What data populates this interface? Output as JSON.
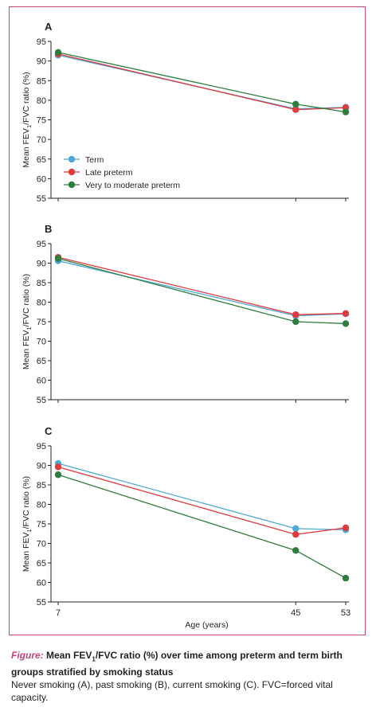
{
  "colors": {
    "term": "#4fa8d6",
    "late_preterm": "#e0393e",
    "very_to_moderate_preterm": "#2e7d3e",
    "frame": "#c4417a"
  },
  "caption": {
    "label": "Figure:",
    "title_pre": "Mean FEV",
    "title_sub": "1",
    "title_post": "/FVC ratio (%) over time among preterm and term birth groups stratified by smoking status",
    "body": "Never smoking (A), past smoking (B), current smoking (C). FVC=forced vital capacity."
  },
  "chart_data": [
    {
      "type": "line",
      "panel": "A",
      "ylabel_pre": "Mean FEV",
      "ylabel_sub": "1",
      "ylabel_post": "/FVC ratio (%)",
      "xlabel": "",
      "x": [
        7,
        45,
        53
      ],
      "ylim": [
        55,
        95
      ],
      "yticks": [
        55,
        60,
        65,
        70,
        75,
        80,
        85,
        90,
        95
      ],
      "legend": "bottom-left",
      "series": [
        {
          "name": "Term",
          "key": "term",
          "values": [
            91.5,
            77.8,
            78.2
          ]
        },
        {
          "name": "Late preterm",
          "key": "late_preterm",
          "values": [
            91.8,
            77.6,
            78.1
          ]
        },
        {
          "name": "Very to moderate preterm",
          "key": "very_to_moderate_preterm",
          "values": [
            92.2,
            79.0,
            77.0
          ]
        }
      ]
    },
    {
      "type": "line",
      "panel": "B",
      "ylabel_pre": "Mean FEV",
      "ylabel_sub": "1",
      "ylabel_post": "/FVC ratio (%)",
      "xlabel": "",
      "x": [
        7,
        45,
        53
      ],
      "ylim": [
        55,
        95
      ],
      "yticks": [
        55,
        60,
        65,
        70,
        75,
        80,
        85,
        90,
        95
      ],
      "legend": "none",
      "series": [
        {
          "name": "Term",
          "key": "term",
          "values": [
            90.6,
            76.5,
            77.0
          ]
        },
        {
          "name": "Late preterm",
          "key": "late_preterm",
          "values": [
            91.5,
            76.8,
            77.1
          ]
        },
        {
          "name": "Very to moderate preterm",
          "key": "very_to_moderate_preterm",
          "values": [
            91.2,
            75.0,
            74.5
          ]
        }
      ]
    },
    {
      "type": "line",
      "panel": "C",
      "ylabel_pre": "Mean FEV",
      "ylabel_sub": "1",
      "ylabel_post": "/FVC ratio (%)",
      "xlabel": "Age (years)",
      "x": [
        7,
        45,
        53
      ],
      "ylim": [
        55,
        95
      ],
      "yticks": [
        55,
        60,
        65,
        70,
        75,
        80,
        85,
        90,
        95
      ],
      "legend": "none",
      "series": [
        {
          "name": "Term",
          "key": "term",
          "values": [
            90.5,
            73.8,
            73.5
          ]
        },
        {
          "name": "Late preterm",
          "key": "late_preterm",
          "values": [
            89.6,
            72.3,
            74.0
          ]
        },
        {
          "name": "Very to moderate preterm",
          "key": "very_to_moderate_preterm",
          "values": [
            87.6,
            68.2,
            61.1
          ]
        }
      ]
    }
  ]
}
